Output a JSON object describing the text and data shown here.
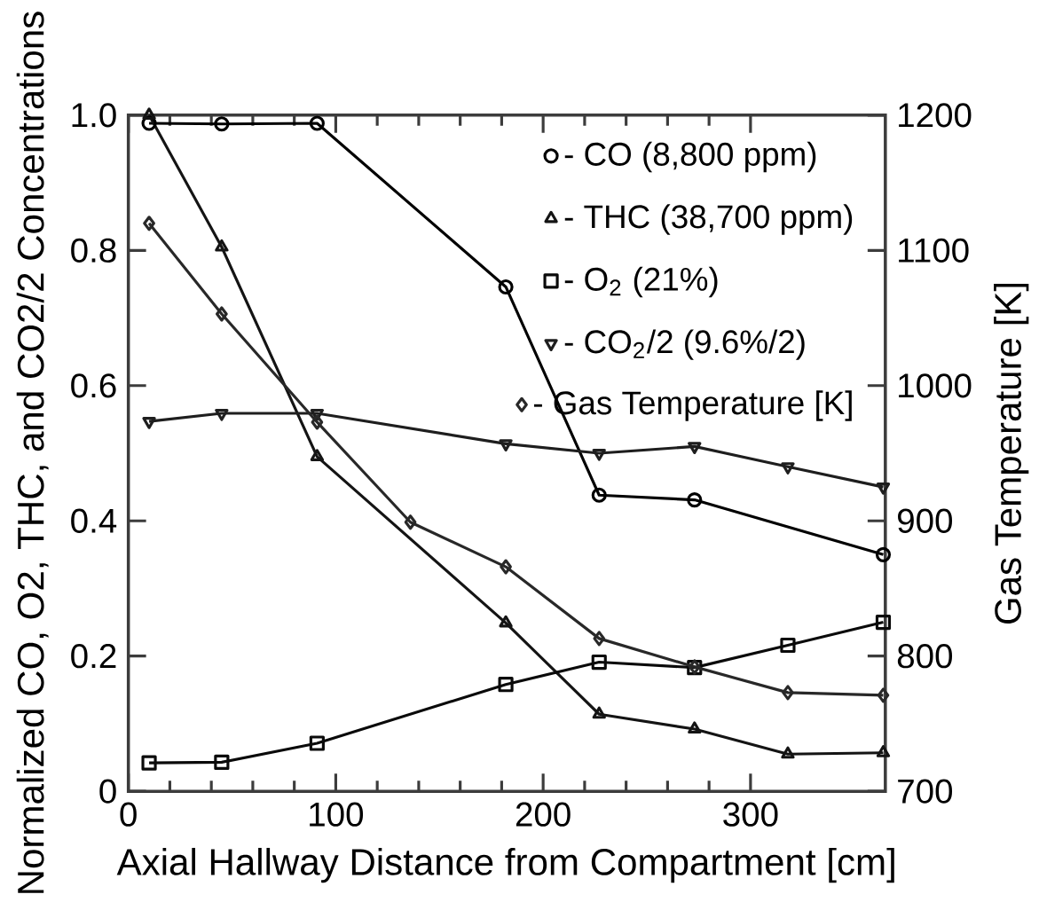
{
  "chart_data": {
    "type": "line",
    "xlabel": "Axial Hallway Distance from Compartment [cm]",
    "ylabel": "Normalized CO, O2, THC, and CO2/2 Concentrations",
    "y2label": "Gas Temperature [K]",
    "xlim": [
      0,
      365
    ],
    "xticks": [
      0,
      100,
      200,
      300
    ],
    "ylim": [
      0,
      1
    ],
    "yticks": [
      0,
      0.2,
      0.4,
      0.6,
      0.8,
      {
        "value": 1,
        "label": "1.0"
      }
    ],
    "y2lim": [
      700,
      1200
    ],
    "y2ticks": [
      700,
      800,
      900,
      1000,
      1100,
      1200
    ],
    "legend": "top right",
    "grid": false,
    "series": [
      {
        "name": "- CO (8,800 ppm)",
        "color": "#000000",
        "marker": "circle",
        "x": [
          10,
          45,
          91,
          182,
          227,
          273,
          364
        ],
        "values": [
          0.988,
          0.987,
          0.988,
          0.746,
          0.438,
          0.431,
          0.35
        ]
      },
      {
        "name": "- THC (38,700 ppm)",
        "color": "#141414",
        "marker": "triangle",
        "x": [
          10,
          45,
          91,
          182,
          227,
          273,
          318,
          364
        ],
        "values": [
          1.0,
          0.805,
          0.495,
          0.249,
          0.114,
          0.092,
          0.055,
          0.057
        ]
      },
      {
        "name": "- O$_{2}$ (21%)",
        "color": "#0a0a0a",
        "marker": "square",
        "x": [
          10,
          45,
          91,
          182,
          227,
          273,
          318,
          364
        ],
        "values": [
          0.042,
          0.043,
          0.071,
          0.158,
          0.191,
          0.183,
          0.216,
          0.25
        ]
      },
      {
        "name": "- CO$_{2}$/2 (9.6%/2)",
        "color": "#1e1e1e",
        "marker": "triangle-down",
        "x": [
          10,
          45,
          91,
          182,
          227,
          273,
          318,
          364
        ],
        "values": [
          0.547,
          0.559,
          0.559,
          0.514,
          0.5,
          0.51,
          0.48,
          0.45
        ]
      },
      {
        "name": "- Gas Temperature [K]",
        "color": "#282828",
        "marker": "diamond",
        "axis": "y2",
        "x": [
          10,
          45,
          91,
          136,
          182,
          227,
          273,
          318,
          364
        ],
        "values": [
          1120,
          1053,
          973,
          899,
          866,
          813,
          792,
          773,
          771
        ]
      }
    ]
  }
}
